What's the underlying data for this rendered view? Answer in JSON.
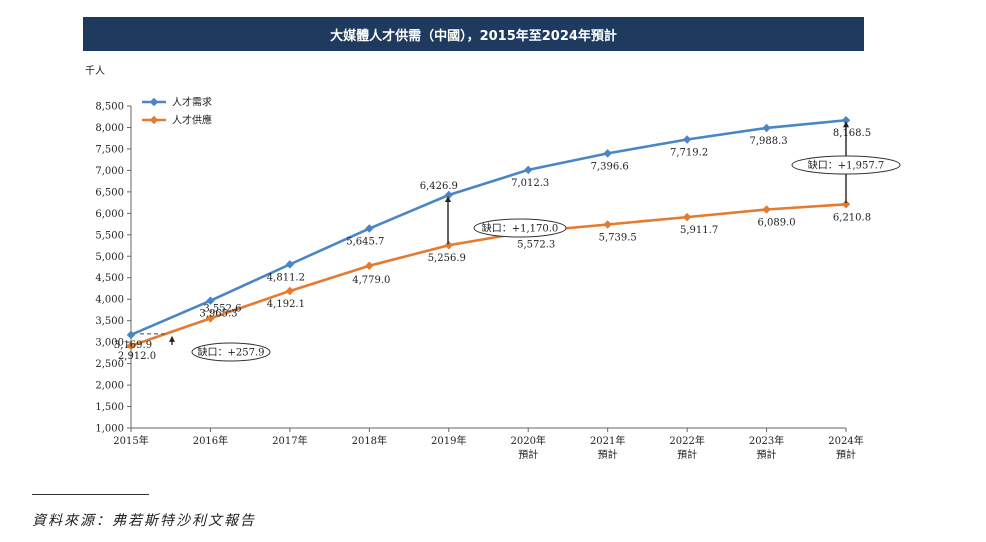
{
  "chart_data": {
    "type": "line",
    "title": "大媒體人才供需（中國），2015年至2024年預計",
    "ylabel": "千人",
    "xlabel": "",
    "ylim": [
      1000,
      8500
    ],
    "yticks": [
      "1,000",
      "1,500",
      "2,000",
      "2,500",
      "3,000",
      "3,500",
      "4,000",
      "4,500",
      "5,000",
      "5,500",
      "6,000",
      "6,500",
      "7,000",
      "7,500",
      "8,000",
      "8,500"
    ],
    "categories": [
      {
        "year": "2015年",
        "note": ""
      },
      {
        "year": "2016年",
        "note": ""
      },
      {
        "year": "2017年",
        "note": ""
      },
      {
        "year": "2018年",
        "note": ""
      },
      {
        "year": "2019年",
        "note": ""
      },
      {
        "year": "2020年",
        "note": "預計"
      },
      {
        "year": "2021年",
        "note": "預計"
      },
      {
        "year": "2022年",
        "note": "預計"
      },
      {
        "year": "2023年",
        "note": "預計"
      },
      {
        "year": "2024年",
        "note": "預計"
      }
    ],
    "legend_position": "top-left",
    "series": [
      {
        "name": "人才需求",
        "color": "#4a86c5",
        "values": [
          3169.9,
          3965.3,
          4811.2,
          5645.7,
          6426.9,
          7012.3,
          7396.6,
          7719.2,
          7988.3,
          8168.5
        ],
        "labels": [
          "3,169.9",
          "3,965.3",
          "4,811.2",
          "5,645.7",
          "6,426.9",
          "7,012.3",
          "7,396.6",
          "7,719.2",
          "7,988.3",
          "8,168.5"
        ]
      },
      {
        "name": "人才供應",
        "color": "#e47b2e",
        "values": [
          2912.0,
          3552.6,
          4192.1,
          4779.0,
          5256.9,
          5572.3,
          5739.5,
          5911.7,
          6089.0,
          6210.8
        ],
        "labels": [
          "2,912.0",
          "3,552.6",
          "4,192.1",
          "4,779.0",
          "5,256.9",
          "5,572.3",
          "5,739.5",
          "5,911.7",
          "6,089.0",
          "6,210.8"
        ]
      }
    ],
    "annotations": [
      {
        "index": 0,
        "text": "缺口：+257.9"
      },
      {
        "index": 4,
        "text": "缺口：+1,170.0"
      },
      {
        "index": 9,
        "text": "缺口：+1,957.7"
      }
    ]
  },
  "source_text": "資料來源：弗若斯特沙利文報告"
}
